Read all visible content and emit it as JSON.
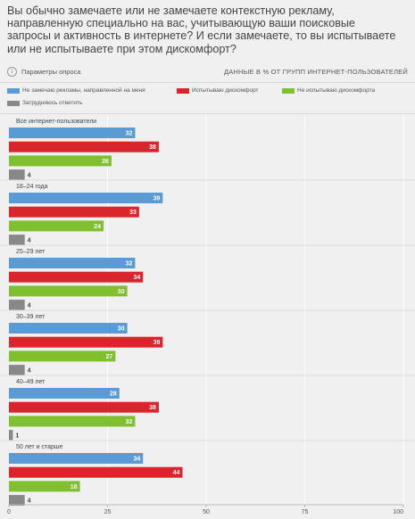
{
  "question": "Вы обычно замечаете или не замечаете контекстную рекламу, направленную специально на вас, учитывающую ваши поисковые запросы и активность в интернете? И если замечаете, то вы испытываете или не испытываете при этом дискомфорт?",
  "info_icon": "info-icon",
  "params_label": "Параметры опроса",
  "units_label": "ДАННЫЕ В % ОТ ГРУПП ИНТЕРНЕТ-ПОЛЬЗОВАТЕЛЕЙ",
  "legend": [
    {
      "label": "Не замечаю рекламы, направленной на меня",
      "color": "#5b9bd5"
    },
    {
      "label": "Испытываю дискомфорт",
      "color": "#d9262c"
    },
    {
      "label": "Не испытываю дискомфорта",
      "color": "#80bf30"
    },
    {
      "label": "Затрудняюсь ответить",
      "color": "#888888"
    }
  ],
  "chart_data": {
    "type": "bar",
    "orientation": "horizontal",
    "categories": [
      "Все интернет-пользователи",
      "18–24 года",
      "25–29 лет",
      "30–39 лет",
      "40–49 лет",
      "50 лет и старше"
    ],
    "series": [
      {
        "name": "Не замечаю рекламы, направленной на меня",
        "color": "#5b9bd5",
        "values": [
          32,
          39,
          32,
          30,
          28,
          34
        ]
      },
      {
        "name": "Испытываю дискомфорт",
        "color": "#d9262c",
        "values": [
          38,
          33,
          34,
          39,
          38,
          44
        ]
      },
      {
        "name": "Не испытываю дискомфорта",
        "color": "#80bf30",
        "values": [
          26,
          24,
          30,
          27,
          32,
          18
        ]
      },
      {
        "name": "Затрудняюсь ответить",
        "color": "#888888",
        "values": [
          4,
          4,
          4,
          4,
          1,
          4
        ]
      }
    ],
    "xlim": [
      0,
      100
    ],
    "xticks": [
      0,
      25,
      50,
      75,
      100
    ],
    "grid": true,
    "legend_position": "top",
    "value_labels": true
  }
}
